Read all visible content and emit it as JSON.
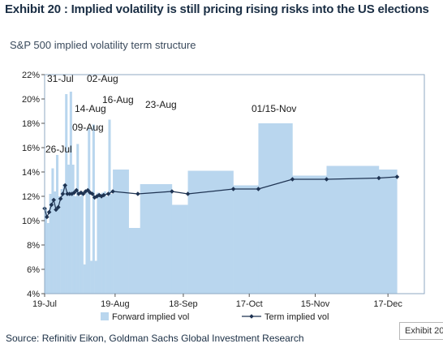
{
  "header": {
    "title": "Exhibit 20 : Implied volatility is still pricing rising risks into the US elections",
    "subtitle": "S&P 500 implied volatility term structure"
  },
  "footer": {
    "source": "Source: Refinitiv Eikon, Goldman Sachs Global Investment Research",
    "tag": "Exhibit 20"
  },
  "colors": {
    "bars": "#b9d6ee",
    "line": "#1e3352",
    "frame": "#8fa9c3"
  },
  "chart_data": {
    "type": "bar",
    "y_tick_labels": [
      "4%",
      "6%",
      "8%",
      "10%",
      "12%",
      "14%",
      "16%",
      "18%",
      "20%",
      "22%"
    ],
    "ylim": [
      4,
      22
    ],
    "x_tick_labels": [
      "19-Jul",
      "19-Aug",
      "18-Sep",
      "17-Oct",
      "15-Nov",
      "17-Dec"
    ],
    "xlim_days": [
      0,
      167
    ],
    "x_tick_days": [
      0,
      31,
      61,
      90,
      119,
      151
    ],
    "grid": false,
    "legend": {
      "placement": "bottom"
    },
    "series": [
      {
        "name": "Forward implied vol",
        "kind": "bar",
        "segments": [
          [
            0,
            1,
            11.0
          ],
          [
            1,
            2,
            9.8
          ],
          [
            2,
            3,
            12.2
          ],
          [
            3,
            4,
            14.3
          ],
          [
            4,
            5,
            12.4
          ],
          [
            5,
            6,
            15.4
          ],
          [
            6,
            7,
            12.0
          ],
          [
            7,
            8,
            12.6
          ],
          [
            8,
            9,
            13.0
          ],
          [
            9,
            10,
            20.4
          ],
          [
            10,
            11,
            14.6
          ],
          [
            11,
            12,
            20.6
          ],
          [
            12,
            13,
            14.6
          ],
          [
            13,
            14,
            12.0
          ],
          [
            14,
            15,
            16.3
          ],
          [
            15,
            16,
            12.0
          ],
          [
            16,
            17,
            12.3
          ],
          [
            17,
            18,
            6.4
          ],
          [
            18,
            19,
            12.3
          ],
          [
            19,
            20,
            17.6
          ],
          [
            20,
            21,
            6.7
          ],
          [
            21,
            22,
            17.9
          ],
          [
            22,
            23,
            6.7
          ],
          [
            23,
            24,
            12.3
          ],
          [
            24,
            25,
            12.2
          ],
          [
            25,
            26,
            12.3
          ],
          [
            26,
            27,
            12.4
          ],
          [
            27,
            28,
            12.0
          ],
          [
            28,
            29,
            18.3
          ],
          [
            29,
            30,
            12.2
          ],
          [
            30,
            37,
            14.2
          ],
          [
            37,
            42,
            9.4
          ],
          [
            42,
            56,
            13.0
          ],
          [
            56,
            63,
            11.3
          ],
          [
            63,
            83,
            14.1
          ],
          [
            83,
            94,
            12.9
          ],
          [
            94,
            109,
            18.0
          ],
          [
            109,
            124,
            13.7
          ],
          [
            124,
            147,
            14.5
          ],
          [
            147,
            155,
            14.2
          ]
        ]
      },
      {
        "name": "Term implied vol",
        "kind": "line",
        "x_days": [
          0,
          1,
          2,
          3,
          4,
          5,
          6,
          7,
          8,
          9,
          10,
          11,
          12,
          13,
          14,
          15,
          16,
          17,
          18,
          19,
          20,
          21,
          22,
          23,
          24,
          25,
          26,
          28,
          30,
          41,
          56,
          63,
          83,
          94,
          109,
          124,
          147,
          155
        ],
        "y": [
          11.0,
          10.3,
          10.7,
          11.3,
          11.7,
          10.9,
          11.1,
          11.8,
          12.2,
          12.9,
          12.2,
          12.2,
          12.2,
          12.3,
          12.5,
          12.2,
          12.3,
          12.2,
          12.4,
          12.5,
          12.3,
          12.2,
          11.9,
          12.0,
          12.1,
          12.0,
          12.1,
          12.2,
          12.4,
          12.2,
          12.4,
          12.2,
          12.6,
          12.6,
          13.4,
          13.4,
          13.5,
          13.6
        ]
      }
    ],
    "annotations": [
      {
        "label": "31-Jul",
        "x_day": 10,
        "y": 20.6
      },
      {
        "label": "02-Aug",
        "x_day": 12,
        "y": 20.8
      },
      {
        "label": "26-Jul",
        "x_day": 4,
        "y": 14.5
      },
      {
        "label": "14-Aug",
        "x_day": 18,
        "y": 17.7
      },
      {
        "label": "16-Aug",
        "x_day": 23,
        "y": 18.0
      },
      {
        "label": "23-Aug",
        "x_day": 28,
        "y": 18.4
      },
      {
        "label": "09-Aug",
        "x_day": 15,
        "y": 16.4
      },
      {
        "label": "01/15-Nov",
        "x_day": 101,
        "y": 18.1
      }
    ]
  }
}
